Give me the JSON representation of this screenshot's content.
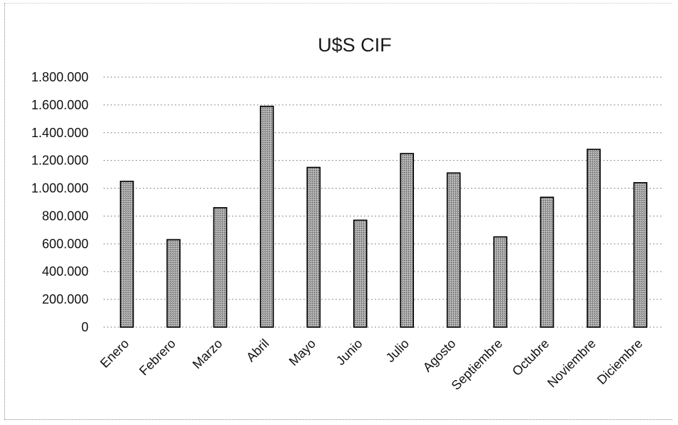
{
  "chart_data": {
    "type": "bar",
    "title": "U$S CIF",
    "xlabel": "",
    "ylabel": "",
    "categories": [
      "Enero",
      "Febrero",
      "Marzo",
      "Abril",
      "Mayo",
      "Junio",
      "Julio",
      "Agosto",
      "Septiembre",
      "Octubre",
      "Noviembre",
      "Diciembre"
    ],
    "values": [
      1050000,
      630000,
      860000,
      1590000,
      1150000,
      770000,
      1250000,
      1110000,
      650000,
      935000,
      1280000,
      1040000
    ],
    "ylim": [
      0,
      1800000
    ],
    "yticks": [
      0,
      200000,
      400000,
      600000,
      800000,
      1000000,
      1200000,
      1400000,
      1600000,
      1800000
    ],
    "ytick_labels": [
      "0",
      "200.000",
      "400.000",
      "600.000",
      "800.000",
      "1.000.000",
      "1.200.000",
      "1.400.000",
      "1.600.000",
      "1.800.000"
    ],
    "grid": true,
    "legend": "none",
    "bar_color": "#8c8c8c"
  }
}
